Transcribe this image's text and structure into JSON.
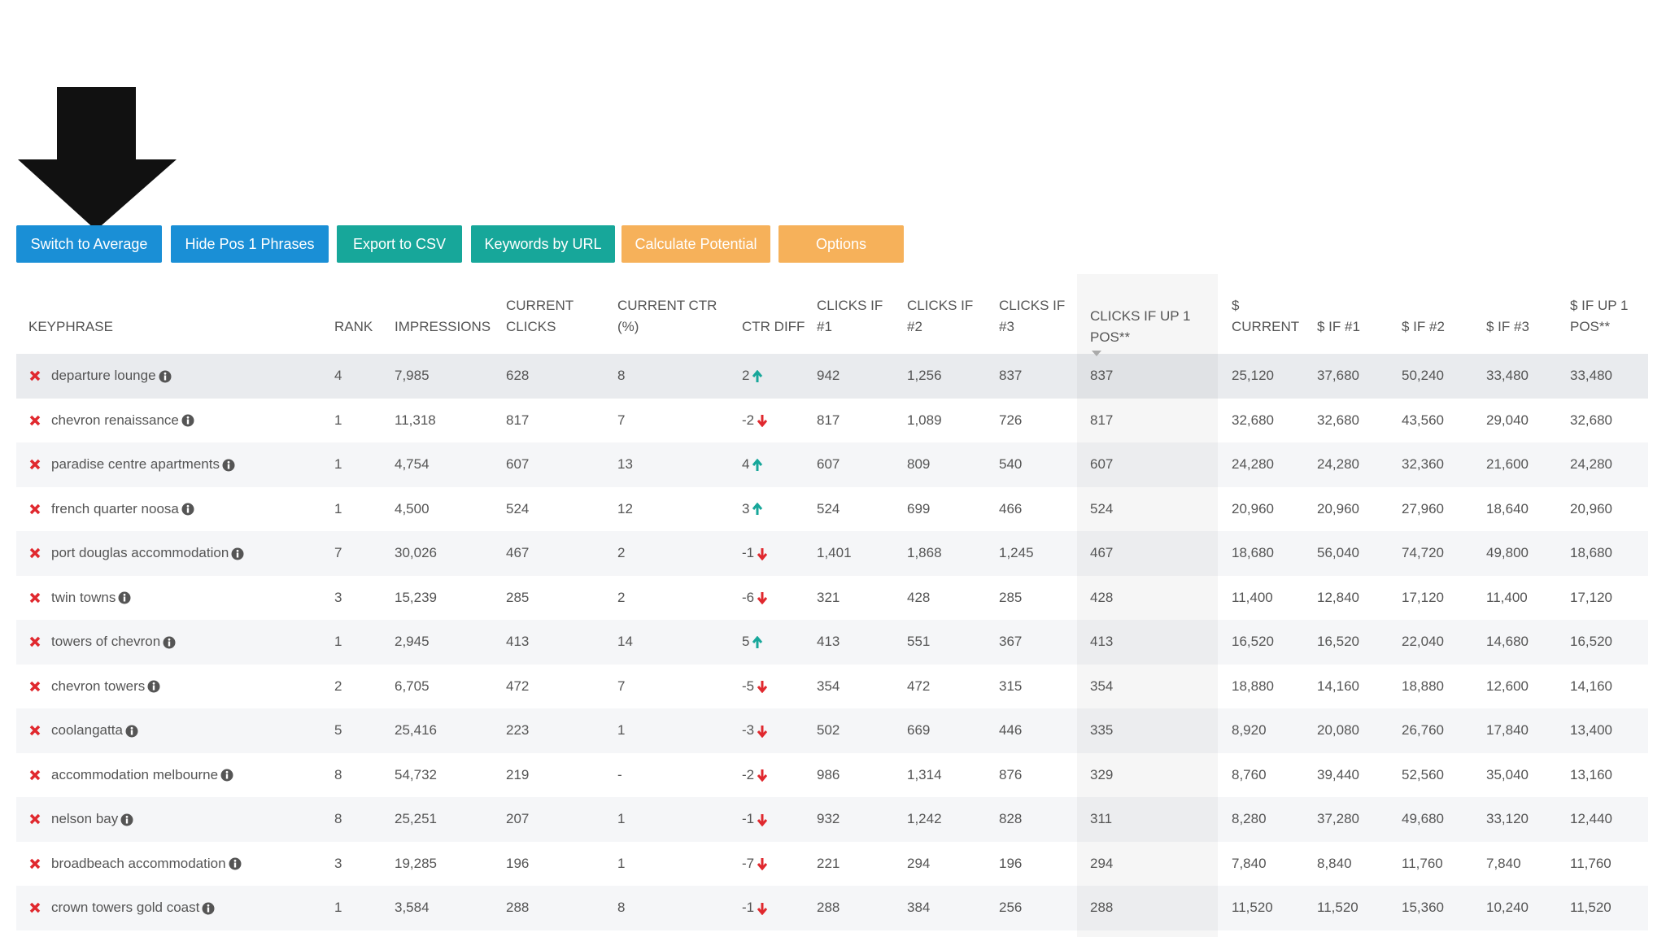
{
  "buttons": [
    "Switch to Average",
    "Hide Pos 1 Phrases",
    "Export to CSV",
    "Keywords by URL",
    "Calculate Potential",
    "Options"
  ],
  "table": {
    "headers": [
      "KEYPHRASE",
      "RANK",
      "IMPRESSIONS",
      "CURRENT CLICKS",
      "CURRENT CTR (%)",
      "CTR DIFF",
      "CLICKS IF #1",
      "CLICKS IF #2",
      "CLICKS IF #3",
      "CLICKS IF UP 1 POS**",
      "$ CURRENT",
      "$ IF #1",
      "$ IF #2",
      "$ IF #3",
      "$ IF UP 1 POS**"
    ],
    "rows": [
      [
        "departure lounge",
        "4",
        "7,985",
        "628",
        "8",
        "2",
        "942",
        "1,256",
        "837",
        "837",
        "25,120",
        "37,680",
        "50,240",
        "33,480",
        "33,480"
      ],
      [
        "chevron renaissance",
        "1",
        "11,318",
        "817",
        "7",
        "-2",
        "817",
        "1,089",
        "726",
        "817",
        "32,680",
        "32,680",
        "43,560",
        "29,040",
        "32,680"
      ],
      [
        "paradise centre apartments",
        "1",
        "4,754",
        "607",
        "13",
        "4",
        "607",
        "809",
        "540",
        "607",
        "24,280",
        "24,280",
        "32,360",
        "21,600",
        "24,280"
      ],
      [
        "french quarter noosa",
        "1",
        "4,500",
        "524",
        "12",
        "3",
        "524",
        "699",
        "466",
        "524",
        "20,960",
        "20,960",
        "27,960",
        "18,640",
        "20,960"
      ],
      [
        "port douglas accommodation",
        "7",
        "30,026",
        "467",
        "2",
        "-1",
        "1,401",
        "1,868",
        "1,245",
        "467",
        "18,680",
        "56,040",
        "74,720",
        "49,800",
        "18,680"
      ],
      [
        "twin towns",
        "3",
        "15,239",
        "285",
        "2",
        "-6",
        "321",
        "428",
        "285",
        "428",
        "11,400",
        "12,840",
        "17,120",
        "11,400",
        "17,120"
      ],
      [
        "towers of chevron",
        "1",
        "2,945",
        "413",
        "14",
        "5",
        "413",
        "551",
        "367",
        "413",
        "16,520",
        "16,520",
        "22,040",
        "14,680",
        "16,520"
      ],
      [
        "chevron towers",
        "2",
        "6,705",
        "472",
        "7",
        "-5",
        "354",
        "472",
        "315",
        "354",
        "18,880",
        "14,160",
        "18,880",
        "12,600",
        "14,160"
      ],
      [
        "coolangatta",
        "5",
        "25,416",
        "223",
        "1",
        "-3",
        "502",
        "669",
        "446",
        "335",
        "8,920",
        "20,080",
        "26,760",
        "17,840",
        "13,400"
      ],
      [
        "accommodation melbourne",
        "8",
        "54,732",
        "219",
        "-",
        "-2",
        "986",
        "1,314",
        "876",
        "329",
        "8,760",
        "39,440",
        "52,560",
        "35,040",
        "13,160"
      ],
      [
        "nelson bay",
        "8",
        "25,251",
        "207",
        "1",
        "-1",
        "932",
        "1,242",
        "828",
        "311",
        "8,280",
        "37,280",
        "49,680",
        "33,120",
        "12,440"
      ],
      [
        "broadbeach accommodation",
        "3",
        "19,285",
        "196",
        "1",
        "-7",
        "221",
        "294",
        "196",
        "294",
        "7,840",
        "8,840",
        "11,760",
        "7,840",
        "11,760"
      ],
      [
        "crown towers gold coast",
        "1",
        "3,584",
        "288",
        "8",
        "-1",
        "288",
        "384",
        "256",
        "288",
        "11,520",
        "11,520",
        "15,360",
        "10,240",
        "11,520"
      ]
    ]
  }
}
